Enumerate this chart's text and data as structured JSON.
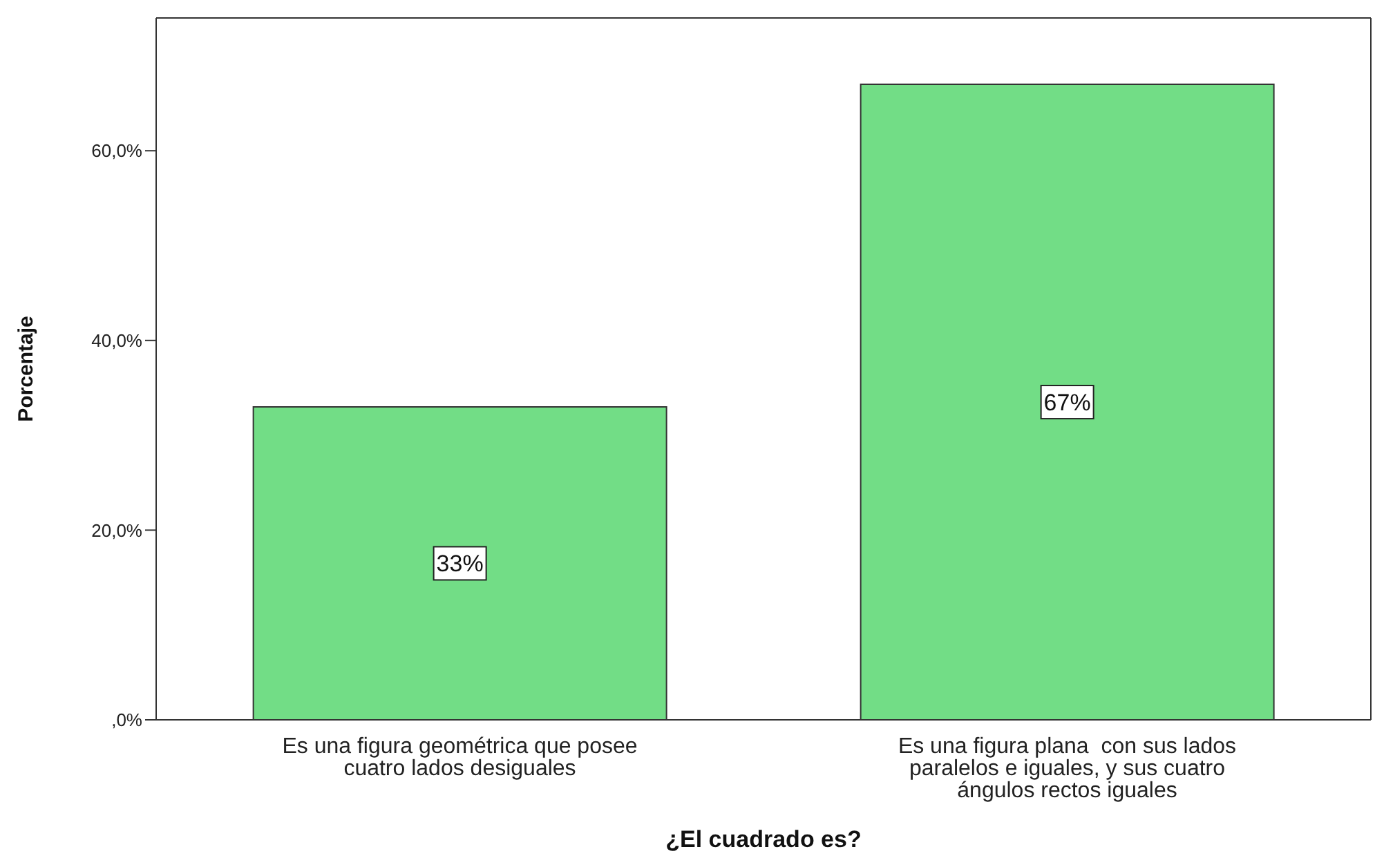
{
  "chart_data": {
    "type": "bar",
    "xlabel": "¿El cuadrado es?",
    "ylabel": "Porcentaje",
    "categories": [
      "Es una figura geométrica que posee cuatro lados desiguales",
      "Es una figura plana  con sus lados paralelos e iguales, y sus cuatro ángulos rectos iguales"
    ],
    "values": [
      33,
      67
    ],
    "value_labels": [
      "33%",
      "67%"
    ],
    "color": "#72dd86",
    "ylim": [
      0,
      74
    ],
    "yticks": [
      {
        "value": 0,
        "label": ",0%"
      },
      {
        "value": 20,
        "label": "20,0%"
      },
      {
        "value": 40,
        "label": "40,0%"
      },
      {
        "value": 60,
        "label": "60,0%"
      }
    ],
    "grid": false,
    "legend": false
  }
}
